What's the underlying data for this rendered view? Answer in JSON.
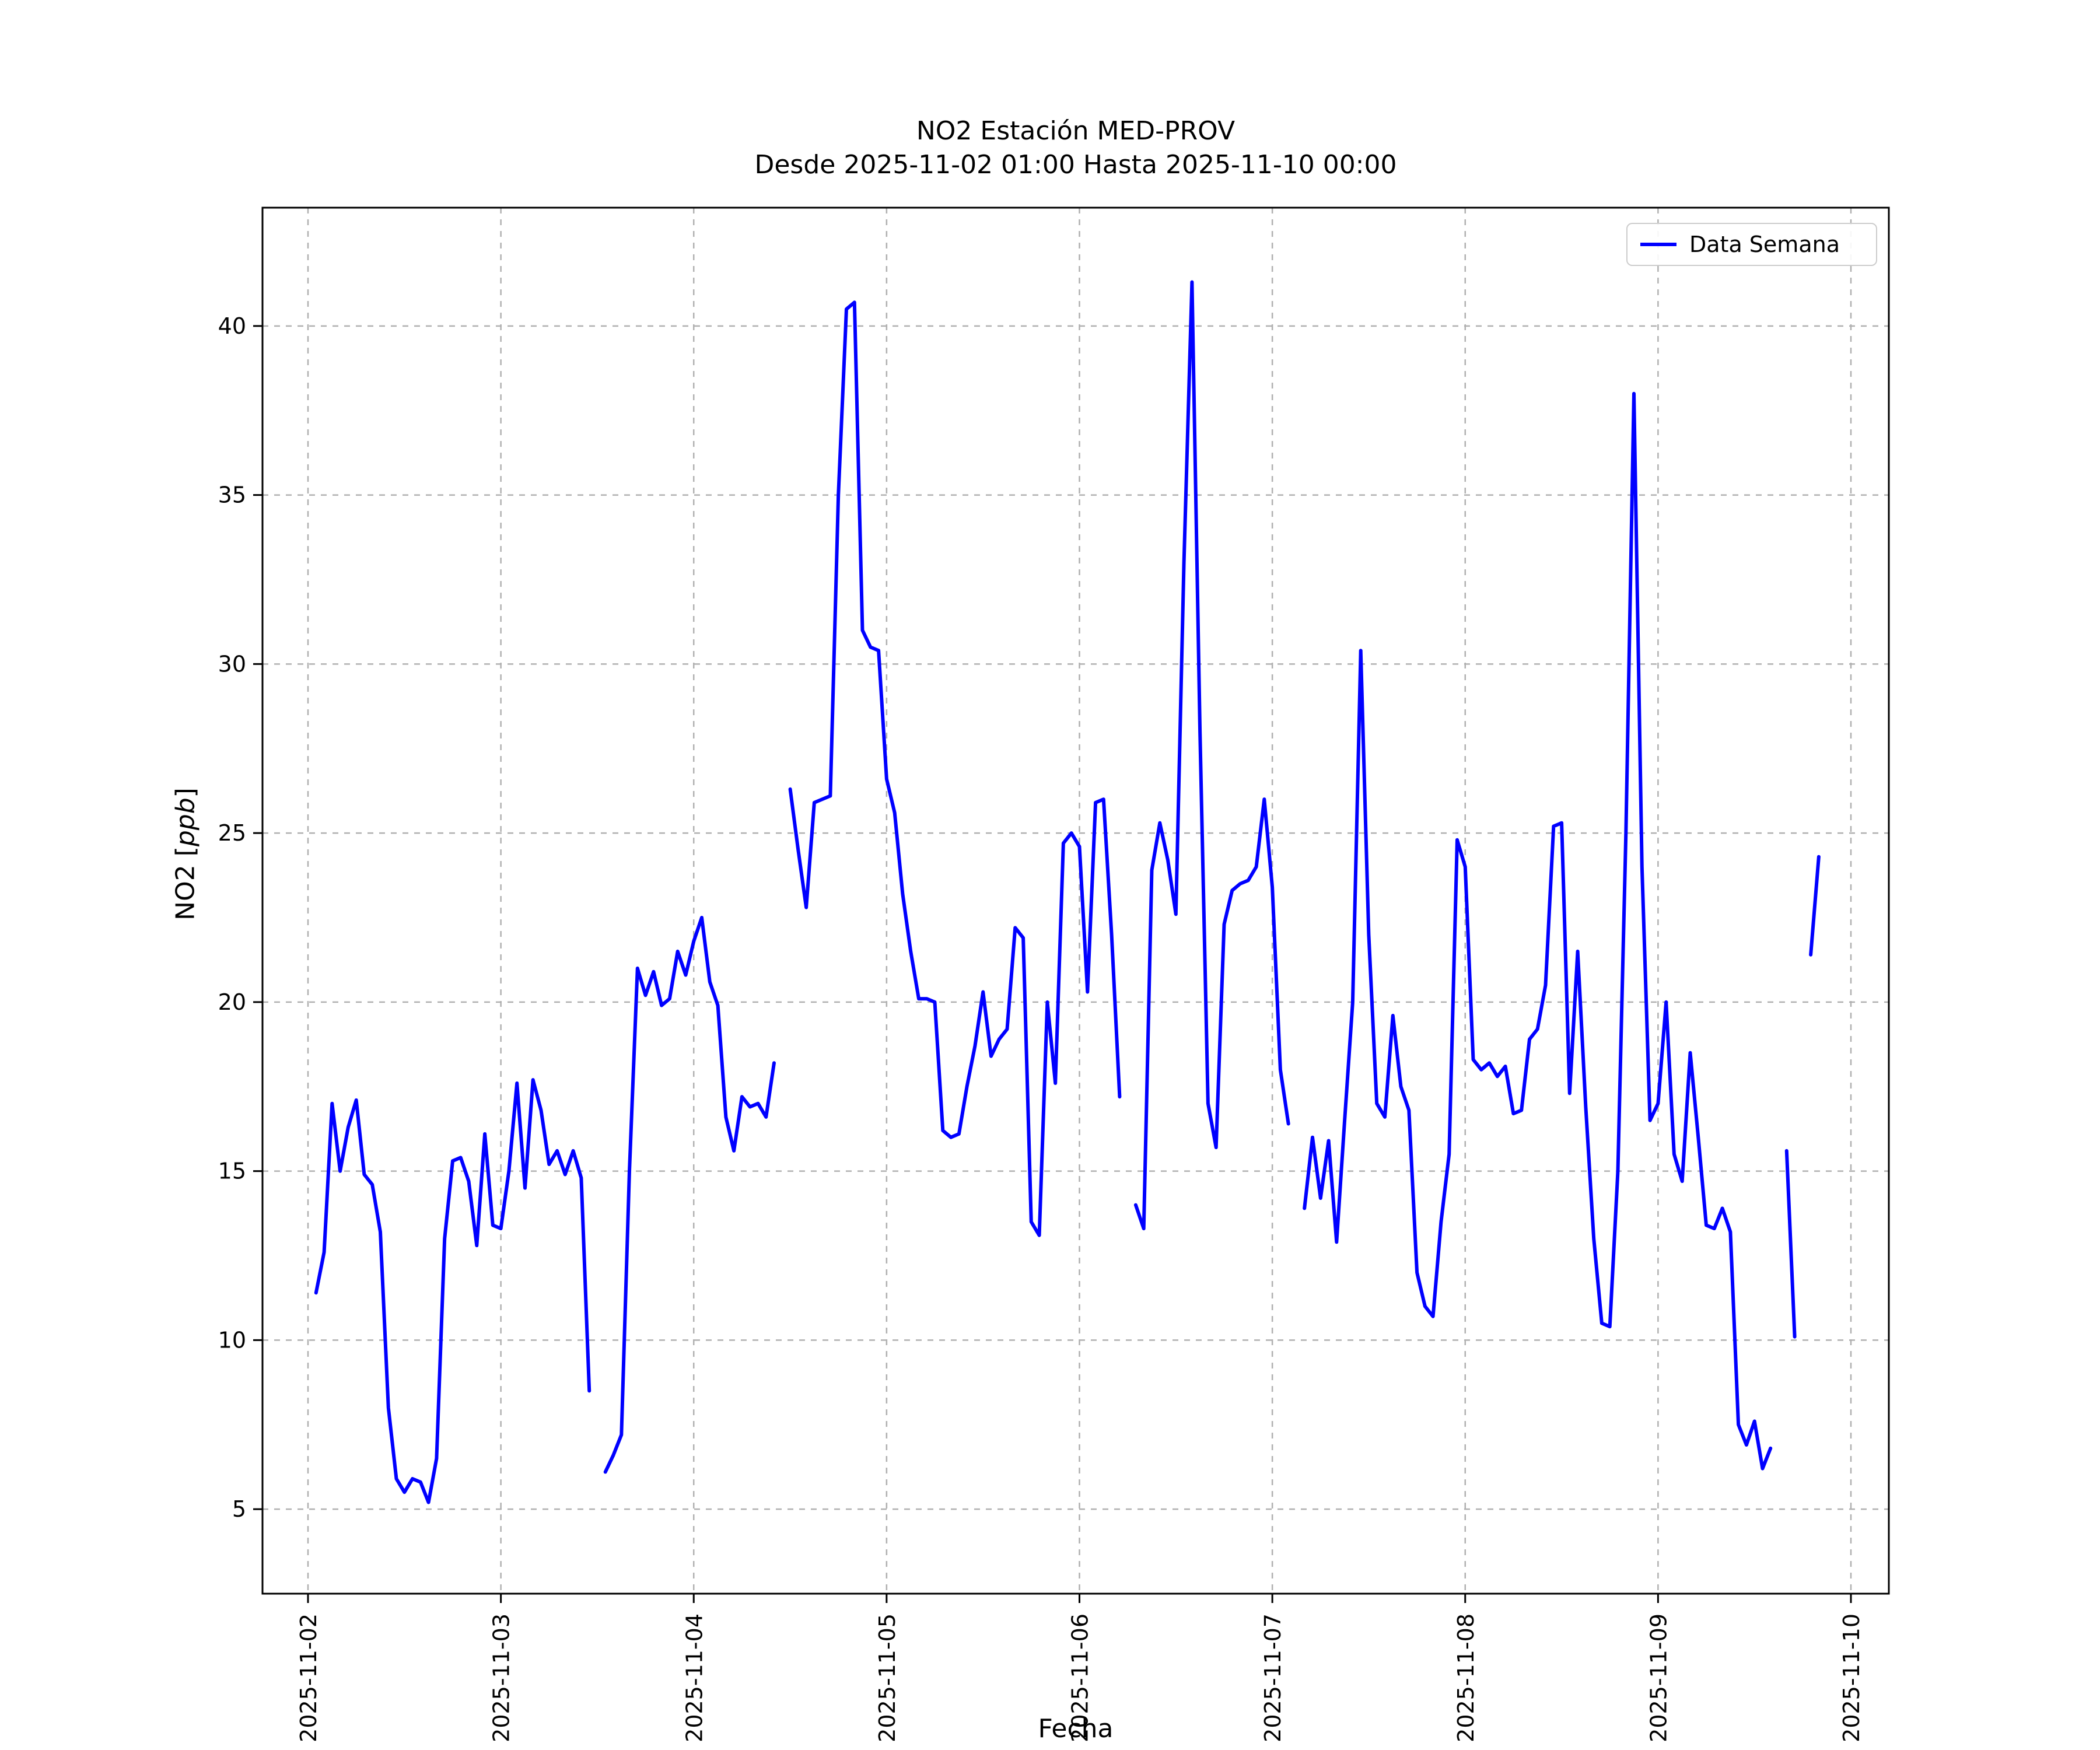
{
  "figure": {
    "title_line1": "NO2 Estación MED-PROV",
    "title_line2": "Desde 2025-11-02 01:00 Hasta 2025-11-10 00:00",
    "xlabel": "Fecha",
    "ylabel_prefix": "NO2 [",
    "ylabel_italic": "ppb",
    "ylabel_suffix": "]",
    "legend_label": "Data Semana",
    "line_color": "#0000ff",
    "grid_color": "#b0b0b0",
    "frame_color": "#000000"
  },
  "chart_data": {
    "type": "line",
    "title": "NO2 Estación MED-PROV\nDesde 2025-11-02 01:00 Hasta 2025-11-10 00:00",
    "xlabel": "Fecha",
    "ylabel": "NO2 [ppb]",
    "legend": [
      "Data Semana"
    ],
    "legend_position": "upper right",
    "grid": true,
    "x_tick_labels": [
      "2025-11-02",
      "2025-11-03",
      "2025-11-04",
      "2025-11-05",
      "2025-11-06",
      "2025-11-07",
      "2025-11-08",
      "2025-11-09",
      "2025-11-10"
    ],
    "y_ticks": [
      5,
      10,
      15,
      20,
      25,
      30,
      35,
      40
    ],
    "ylim": [
      2.5,
      43.5
    ],
    "x_axis_note": "hours since 2025-11-02 00:00, one point per hour, nulls are data gaps",
    "x_first": 1,
    "x_step": 1,
    "x_days_span": 8,
    "series": [
      {
        "name": "Data Semana",
        "color": "#0000ff",
        "values": [
          11.4,
          12.6,
          17.0,
          15.0,
          16.3,
          17.1,
          14.9,
          14.6,
          13.2,
          8.0,
          5.9,
          5.5,
          5.9,
          5.8,
          5.2,
          6.5,
          13.0,
          15.3,
          15.4,
          14.7,
          12.8,
          16.1,
          13.4,
          13.3,
          15.0,
          17.6,
          14.5,
          17.7,
          16.8,
          15.2,
          15.6,
          14.9,
          15.6,
          14.8,
          8.5,
          null,
          6.1,
          6.6,
          7.2,
          15.0,
          21.0,
          20.2,
          20.9,
          19.9,
          20.1,
          21.5,
          20.8,
          21.8,
          22.5,
          20.6,
          19.9,
          16.6,
          15.6,
          17.2,
          16.9,
          17.0,
          16.6,
          18.2,
          null,
          26.3,
          24.5,
          22.8,
          25.9,
          26.0,
          26.1,
          35.0,
          40.5,
          40.7,
          31.0,
          30.5,
          30.4,
          26.6,
          25.6,
          23.2,
          21.5,
          20.1,
          20.1,
          20.0,
          16.2,
          16.0,
          16.1,
          17.5,
          18.7,
          20.3,
          18.4,
          18.9,
          19.2,
          22.2,
          21.9,
          13.5,
          13.1,
          20.0,
          17.6,
          24.7,
          25.0,
          24.6,
          20.3,
          25.9,
          26.0,
          22.0,
          17.2,
          null,
          14.0,
          13.3,
          23.9,
          25.3,
          24.2,
          22.6,
          33.0,
          41.3,
          28.0,
          17.0,
          15.7,
          22.3,
          23.3,
          23.5,
          23.6,
          24.0,
          26.0,
          23.4,
          18.0,
          16.4,
          null,
          13.9,
          16.0,
          14.2,
          15.9,
          12.9,
          16.5,
          20.0,
          30.4,
          22.0,
          17.0,
          16.6,
          19.6,
          17.5,
          16.8,
          12.0,
          11.0,
          10.7,
          13.5,
          15.5,
          24.8,
          24.0,
          18.3,
          18.0,
          18.2,
          17.8,
          18.1,
          16.7,
          16.8,
          18.9,
          19.2,
          20.5,
          25.2,
          25.3,
          17.3,
          21.5,
          16.9,
          13.0,
          10.5,
          10.4,
          15.0,
          25.0,
          38.0,
          24.0,
          16.5,
          17.0,
          20.0,
          15.5,
          14.7,
          18.5,
          16.0,
          13.4,
          13.3,
          13.9,
          13.2,
          7.5,
          6.9,
          7.6,
          6.2,
          6.8,
          null,
          15.6,
          10.1,
          null,
          21.4,
          24.3
        ]
      }
    ]
  }
}
